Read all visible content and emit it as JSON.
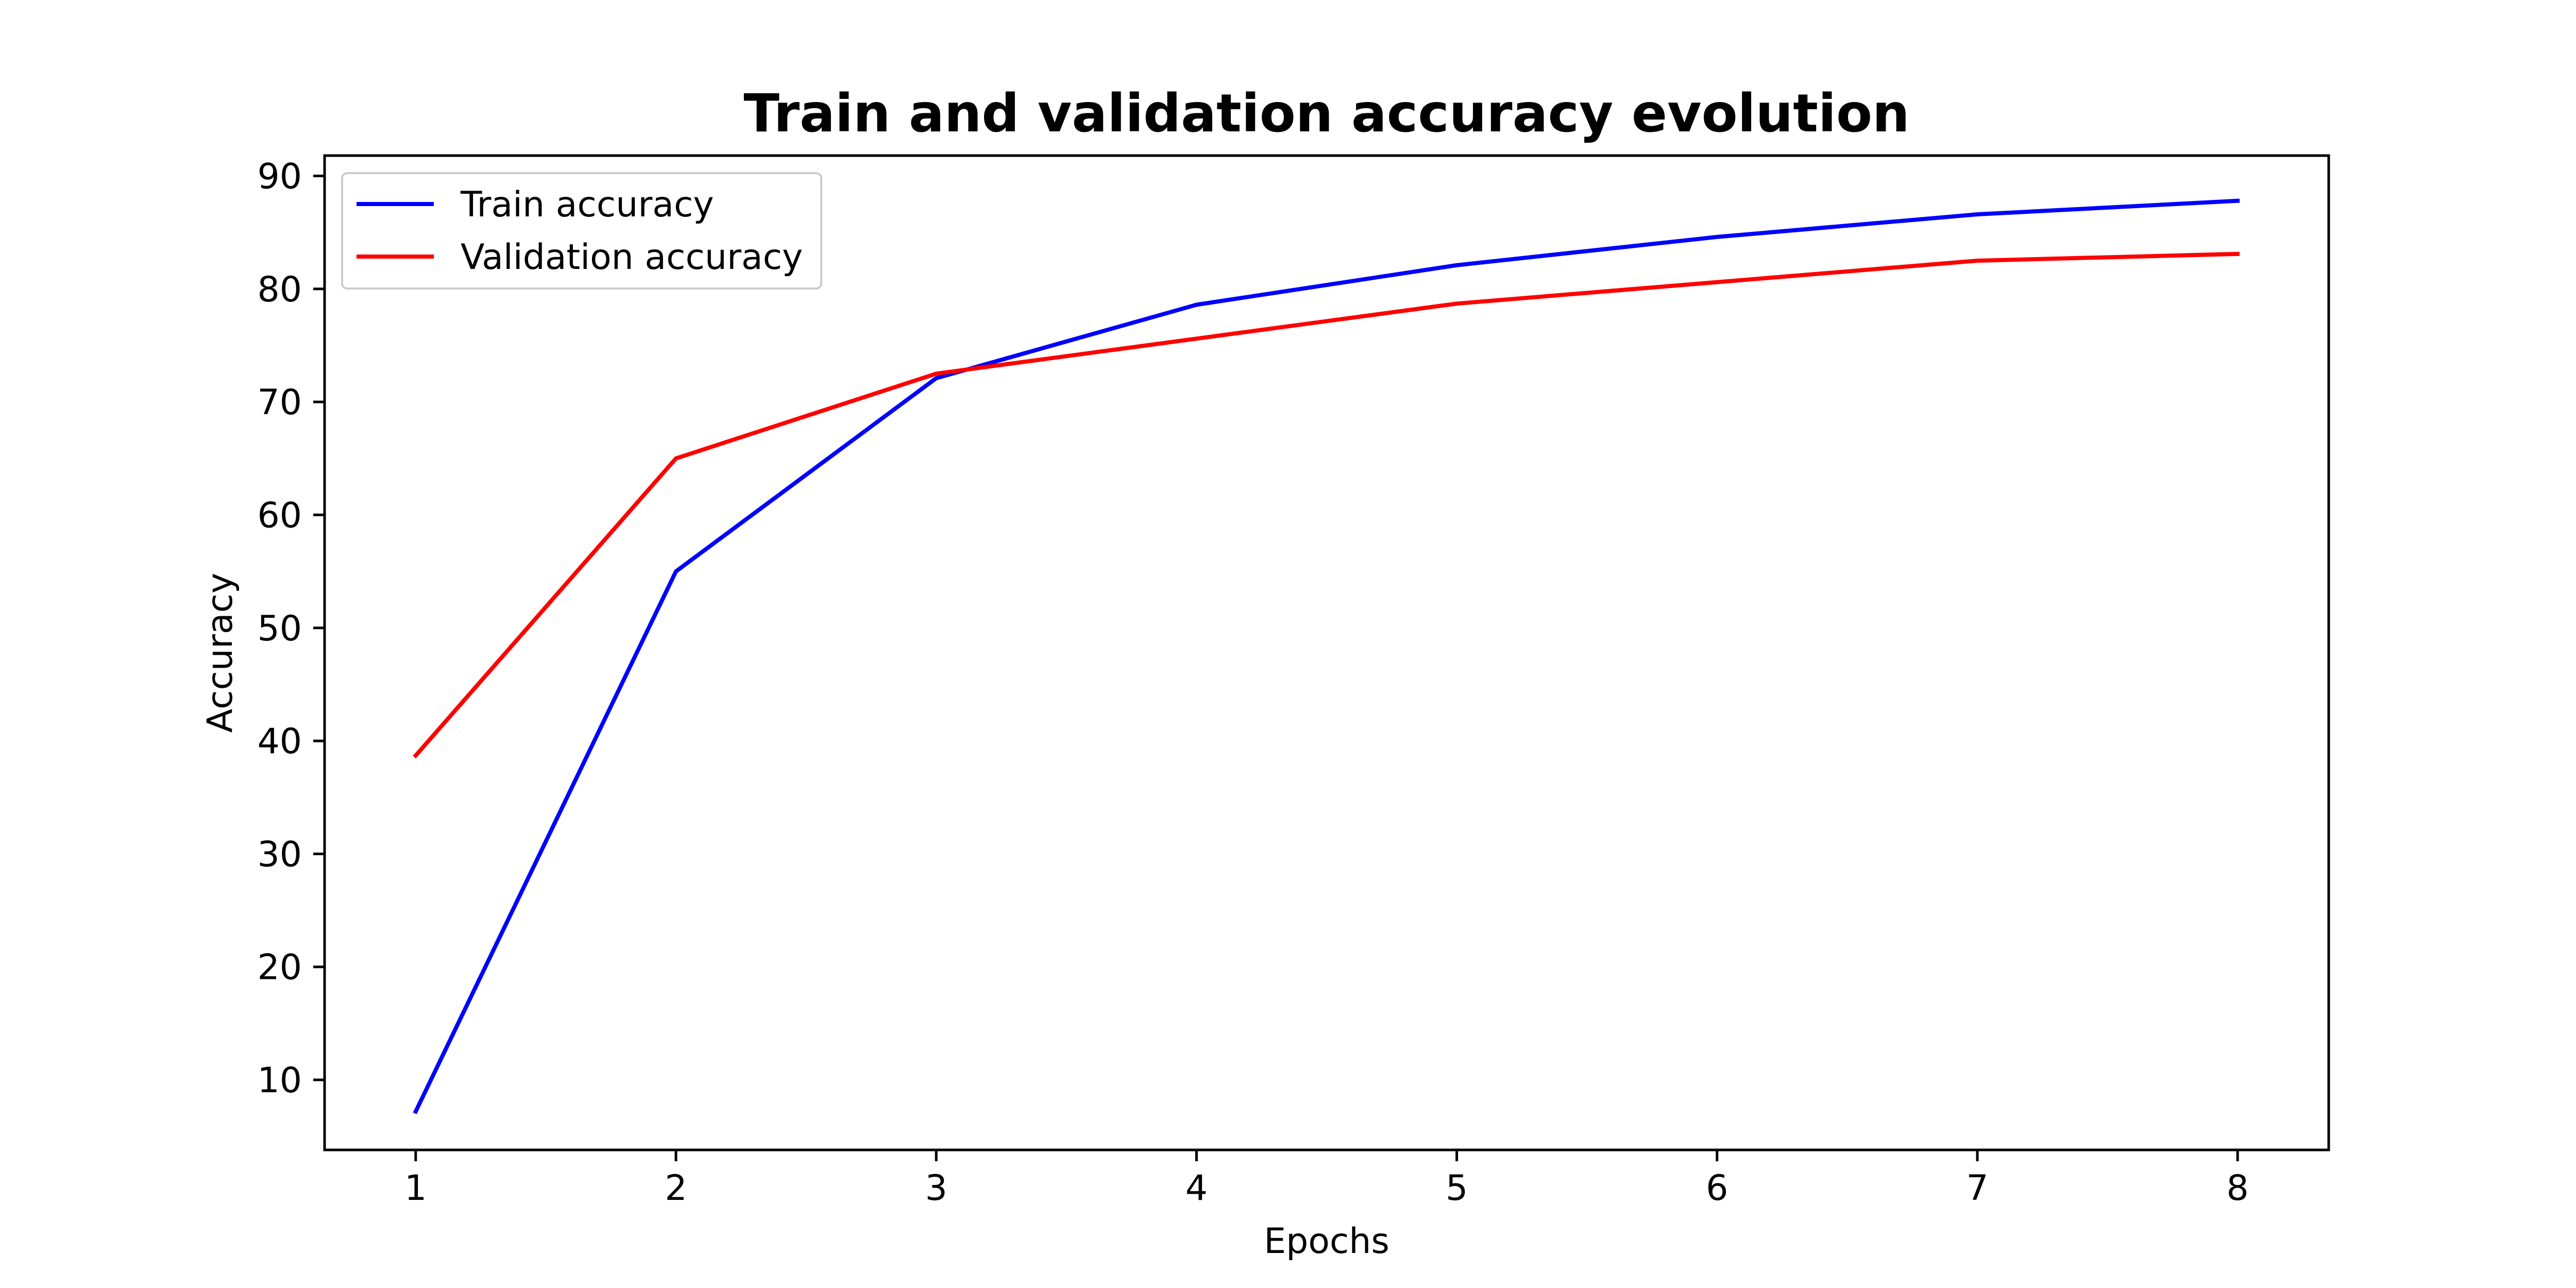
{
  "chart_data": {
    "type": "line",
    "title": "Train and validation accuracy evolution",
    "xlabel": "Epochs",
    "ylabel": "Accuracy",
    "x": [
      1,
      2,
      3,
      4,
      5,
      6,
      7,
      8
    ],
    "xlim": [
      0.65,
      8.35
    ],
    "ylim": [
      3.8,
      91.8
    ],
    "xticks": [
      "1",
      "2",
      "3",
      "4",
      "5",
      "6",
      "7",
      "8"
    ],
    "yticks": [
      "10",
      "20",
      "30",
      "40",
      "50",
      "60",
      "70",
      "80",
      "90"
    ],
    "grid": false,
    "legend_position": "upper left",
    "series": [
      {
        "name": "Train accuracy",
        "color": "#0000ff",
        "values": [
          7.2,
          55.0,
          72.1,
          78.6,
          82.1,
          84.6,
          86.6,
          87.8
        ]
      },
      {
        "name": "Validation accuracy",
        "color": "#ff0000",
        "values": [
          38.7,
          65.0,
          72.5,
          75.6,
          78.7,
          80.6,
          82.5,
          83.1
        ]
      }
    ]
  }
}
